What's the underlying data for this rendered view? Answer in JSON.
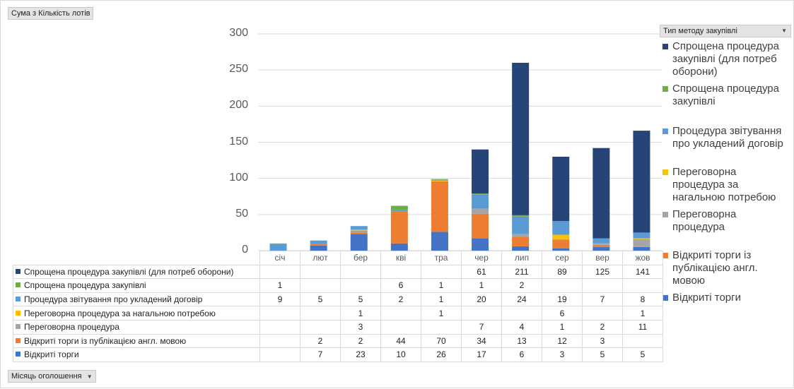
{
  "pivot": {
    "value_field": "Сума з Кількість лотів",
    "axis_field": "Місяць оголошення",
    "legend_field": "Тип методу закупівлі"
  },
  "colors": {
    "s1": "#264478",
    "s2": "#70ad47",
    "s3": "#5b9bd5",
    "s4": "#ffc000",
    "s5": "#a5a5a5",
    "s6": "#ed7d31",
    "s7": "#4472c4"
  },
  "chart_data": {
    "type": "bar",
    "stacked": true,
    "categories": [
      "січ",
      "лют",
      "бер",
      "кві",
      "тра",
      "чер",
      "лип",
      "сер",
      "вер",
      "жов"
    ],
    "ylim": [
      0,
      300
    ],
    "yticks": [
      0,
      50,
      100,
      150,
      200,
      250,
      300
    ],
    "grid": true,
    "legend_position": "right",
    "series": [
      {
        "name": "Спрощена процедура закупівлі (для потреб оборони)",
        "values": [
          null,
          null,
          null,
          null,
          null,
          61,
          211,
          89,
          125,
          141
        ]
      },
      {
        "name": "Спрощена процедура закупівлі",
        "values": [
          1,
          null,
          null,
          6,
          1,
          1,
          2,
          null,
          null,
          null
        ]
      },
      {
        "name": "Процедура звітування про укладений договір",
        "values": [
          9,
          5,
          5,
          2,
          1,
          20,
          24,
          19,
          7,
          8
        ]
      },
      {
        "name": "Переговорна процедура за нагальною потребою",
        "values": [
          null,
          null,
          1,
          null,
          1,
          null,
          null,
          6,
          null,
          1
        ]
      },
      {
        "name": "Переговорна процедура",
        "values": [
          null,
          null,
          3,
          null,
          null,
          7,
          4,
          1,
          2,
          11
        ]
      },
      {
        "name": "Відкриті торги із публікацією англ. мовою",
        "values": [
          null,
          2,
          2,
          44,
          70,
          34,
          13,
          12,
          3,
          null
        ]
      },
      {
        "name": "Відкриті торги",
        "values": [
          null,
          7,
          23,
          10,
          26,
          17,
          6,
          3,
          5,
          5
        ]
      }
    ],
    "table_labels": [
      "Спрощена процедура закупівлі (для потреб  оборони)",
      "Спрощена процедура закупівлі",
      "Процедура  звітування  про укладений договір",
      "Переговорна  процедура  за нагальною потребою",
      "Переговорна  процедура",
      "Відкриті торги  із публікацією  англ. мовою",
      "Відкриті торги"
    ],
    "legend_labels": [
      "Спрощена процедура закупівлі (для потреб оборони)",
      "Спрощена процедура закупівлі",
      "Процедура звітування про укладений договір",
      "Переговорна процедура за нагальною потребою",
      "Переговорна процедура",
      "Відкриті торги із публікацією англ. мовою",
      "Відкриті торги"
    ]
  }
}
